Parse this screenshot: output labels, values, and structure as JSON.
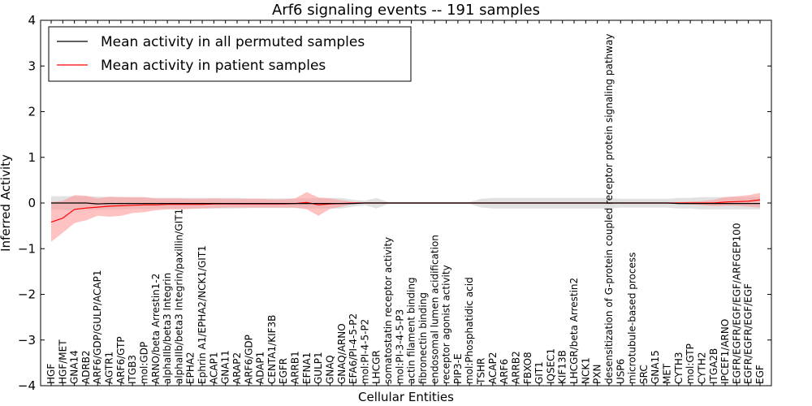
{
  "chart_data": {
    "type": "line",
    "title": "Arf6 signaling events -- 191 samples",
    "xlabel": "Cellular Entities",
    "ylabel": "Inferred Activity",
    "ylim": [
      -4,
      4
    ],
    "yticks": [
      -4,
      -3,
      -2,
      -1,
      0,
      1,
      2,
      3,
      4
    ],
    "ytick_labels": [
      "−4",
      "−3",
      "−2",
      "−1",
      "0",
      "1",
      "2",
      "3",
      "4"
    ],
    "grid": false,
    "legend_position": "top-left",
    "categories": [
      "HGF",
      "HGF/MET",
      "GNA14",
      "ADRB2",
      "ARF6/GDP/GULP/ACAP1",
      "AGTR1",
      "ARF6/GTP",
      "ITGB3",
      "mol:GDP",
      "ARNO/beta Arrestin1-2",
      "alphaIIb/beta3 Integrin",
      "alphaIIb/beta3 Integrin/paxillin/GIT1",
      "EPHA2",
      "Ephrin A1/EPHA2/NCK1/GIT1",
      "ACAP1",
      "GNA11",
      "ARAP2",
      "ARF6/GDP",
      "ADAP1",
      "CENTA1/KIF3B",
      "EGFR",
      "ARRB1",
      "EFNA1",
      "GULP1",
      "GNAQ",
      "GNAQ/ARNO",
      "EFA6/PI-4-5-P2",
      "mol:PI-4-5-P2",
      "LHCGR",
      "somatostatin receptor activity",
      "mol:PI-3-4-5-P3",
      "actin filament binding",
      "fibronectin binding",
      "endosomal lumen acidification",
      "receptor agonist activity",
      "PIP3-E",
      "mol:Phosphatidic acid",
      "TSHR",
      "ACAP2",
      "ARF6",
      "ARRB2",
      "FBXO8",
      "GIT1",
      "IQSEC1",
      "KIF13B",
      "LHCGR/beta Arrestin2",
      "NCK1",
      "PXN",
      "desensitization of G-protein coupled receptor protein signaling pathway",
      "USP6",
      "microtubule-based process",
      "SRC",
      "GNA15",
      "MET",
      "CYTH3",
      "mol:GTP",
      "CYTH2",
      "ITGA2B",
      "IPCEF1/ARNO",
      "EGFR/EGFR/EGF/EGF/ARFGEP100",
      "EGFR/EGFR/EGF/EGF",
      "EGF"
    ],
    "series": [
      {
        "name": "Mean activity in all permuted samples",
        "color": "#000000",
        "band_color": "#c8c8c8",
        "values": [
          0.0,
          0.0,
          0.0,
          0.0,
          -0.02,
          -0.01,
          -0.01,
          -0.01,
          -0.01,
          -0.01,
          -0.01,
          -0.01,
          -0.01,
          -0.01,
          -0.01,
          -0.01,
          -0.01,
          -0.01,
          -0.01,
          -0.01,
          -0.01,
          -0.01,
          -0.01,
          -0.01,
          -0.01,
          -0.01,
          -0.01,
          0.0,
          0.0,
          0.0,
          0.0,
          0.0,
          0.0,
          0.0,
          0.0,
          0.0,
          0.0,
          0.0,
          0.0,
          0.0,
          0.0,
          0.0,
          0.0,
          0.0,
          0.0,
          0.0,
          0.0,
          0.0,
          0.0,
          0.0,
          0.0,
          0.0,
          0.0,
          0.0,
          -0.01,
          -0.01,
          -0.01,
          -0.01,
          -0.01,
          -0.01,
          -0.01,
          -0.01
        ],
        "lower": [
          -0.15,
          -0.15,
          -0.15,
          -0.15,
          -0.15,
          -0.14,
          -0.14,
          -0.13,
          -0.13,
          -0.12,
          -0.12,
          -0.12,
          -0.12,
          -0.12,
          -0.12,
          -0.12,
          -0.12,
          -0.11,
          -0.11,
          -0.11,
          -0.11,
          -0.11,
          -0.12,
          -0.12,
          -0.12,
          -0.12,
          -0.08,
          -0.05,
          -0.12,
          -0.02,
          -0.02,
          -0.02,
          -0.02,
          -0.02,
          -0.02,
          -0.02,
          -0.02,
          -0.1,
          -0.12,
          -0.12,
          -0.12,
          -0.12,
          -0.12,
          -0.12,
          -0.12,
          -0.12,
          -0.12,
          -0.12,
          -0.12,
          -0.1,
          -0.1,
          -0.1,
          -0.1,
          -0.1,
          -0.12,
          -0.12,
          -0.14,
          -0.14,
          -0.14,
          -0.14,
          -0.14,
          -0.14
        ],
        "upper": [
          0.15,
          0.15,
          0.15,
          0.15,
          0.14,
          0.13,
          0.13,
          0.12,
          0.12,
          0.11,
          0.11,
          0.11,
          0.11,
          0.11,
          0.11,
          0.11,
          0.11,
          0.1,
          0.1,
          0.1,
          0.1,
          0.1,
          0.1,
          0.11,
          0.11,
          0.11,
          0.07,
          0.05,
          0.11,
          0.02,
          0.02,
          0.02,
          0.02,
          0.02,
          0.02,
          0.02,
          0.02,
          0.09,
          0.11,
          0.11,
          0.11,
          0.11,
          0.11,
          0.11,
          0.11,
          0.11,
          0.11,
          0.11,
          0.11,
          0.09,
          0.09,
          0.09,
          0.09,
          0.09,
          0.11,
          0.11,
          0.13,
          0.13,
          0.13,
          0.13,
          0.13,
          0.13
        ]
      },
      {
        "name": "Mean activity in patient samples",
        "color": "#ff0000",
        "band_color": "#ff9a9a",
        "values": [
          -0.42,
          -0.33,
          -0.14,
          -0.11,
          -0.09,
          -0.07,
          -0.06,
          -0.05,
          -0.04,
          -0.04,
          -0.03,
          -0.03,
          -0.03,
          -0.03,
          -0.02,
          -0.02,
          -0.02,
          -0.02,
          -0.02,
          -0.02,
          -0.02,
          -0.01,
          0.01,
          -0.04,
          -0.02,
          -0.01,
          0.0,
          0.0,
          0.0,
          0.0,
          0.0,
          0.0,
          0.0,
          0.0,
          0.0,
          0.0,
          0.0,
          0.0,
          0.0,
          0.0,
          0.0,
          0.0,
          0.0,
          0.0,
          0.0,
          0.0,
          0.0,
          0.0,
          0.0,
          0.0,
          0.0,
          0.0,
          0.0,
          0.0,
          0.0,
          0.0,
          0.0,
          0.0,
          0.02,
          0.03,
          0.04,
          0.07
        ],
        "lower": [
          -0.85,
          -0.65,
          -0.44,
          -0.38,
          -0.28,
          -0.3,
          -0.28,
          -0.22,
          -0.2,
          -0.16,
          -0.14,
          -0.14,
          -0.13,
          -0.12,
          -0.11,
          -0.1,
          -0.1,
          -0.1,
          -0.1,
          -0.1,
          -0.1,
          -0.1,
          -0.14,
          -0.28,
          -0.13,
          -0.08,
          -0.02,
          -0.01,
          -0.01,
          -0.01,
          -0.01,
          -0.01,
          -0.01,
          -0.01,
          -0.01,
          -0.01,
          -0.01,
          -0.01,
          -0.01,
          -0.01,
          -0.01,
          -0.01,
          -0.01,
          -0.01,
          -0.01,
          -0.01,
          -0.01,
          -0.01,
          -0.01,
          -0.01,
          -0.01,
          -0.01,
          -0.01,
          -0.01,
          -0.02,
          -0.03,
          -0.05,
          -0.07,
          -0.06,
          -0.06,
          -0.08,
          -0.1
        ],
        "upper": [
          0.02,
          0.05,
          0.17,
          0.16,
          0.1,
          0.14,
          0.13,
          0.13,
          0.13,
          0.1,
          0.1,
          0.1,
          0.09,
          0.09,
          0.1,
          0.09,
          0.09,
          0.09,
          0.09,
          0.08,
          0.08,
          0.1,
          0.24,
          0.12,
          0.1,
          0.06,
          0.02,
          0.01,
          0.01,
          0.01,
          0.01,
          0.01,
          0.01,
          0.01,
          0.01,
          0.01,
          0.01,
          0.01,
          0.01,
          0.01,
          0.01,
          0.01,
          0.01,
          0.01,
          0.01,
          0.01,
          0.01,
          0.01,
          0.01,
          0.01,
          0.01,
          0.01,
          0.01,
          0.01,
          0.02,
          0.03,
          0.04,
          0.07,
          0.13,
          0.15,
          0.17,
          0.22
        ]
      }
    ]
  }
}
